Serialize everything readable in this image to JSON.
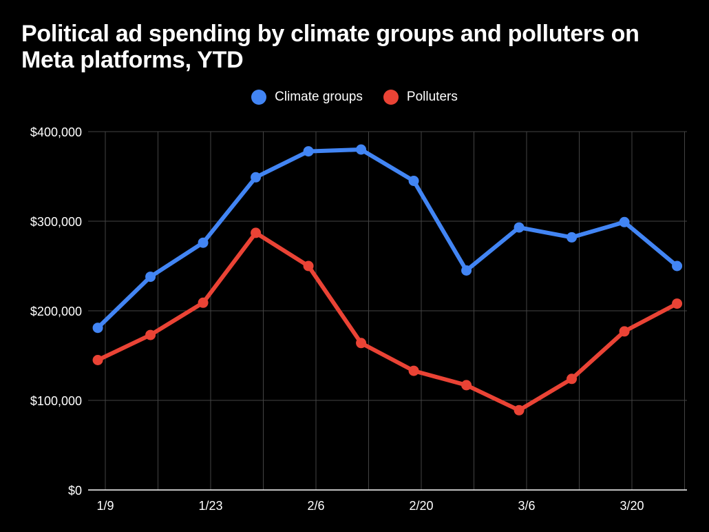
{
  "chart_data": {
    "type": "line",
    "title": "Political ad spending by climate groups and polluters on Meta platforms, YTD",
    "xlabel": "",
    "ylabel": "",
    "x_tick_labels": [
      "1/9",
      "1/23",
      "2/6",
      "2/20",
      "3/6",
      "3/20"
    ],
    "y_tick_labels": [
      "$0",
      "$100,000",
      "$200,000",
      "$300,000",
      "$400,000"
    ],
    "y_ticks": [
      0,
      100000,
      200000,
      300000,
      400000
    ],
    "ylim": [
      0,
      400000
    ],
    "x_dates": [
      "1/8",
      "1/15",
      "1/22",
      "1/29",
      "2/5",
      "2/12",
      "2/19",
      "2/26",
      "3/5",
      "3/12",
      "3/19",
      "3/26"
    ],
    "grid": true,
    "legend_position": "top",
    "series": [
      {
        "name": "Climate groups",
        "color": "#4285F4",
        "values": [
          181000,
          238000,
          276000,
          349000,
          378000,
          380000,
          345000,
          245000,
          293000,
          282000,
          299000,
          250000
        ]
      },
      {
        "name": "Polluters",
        "color": "#EA4335",
        "values": [
          145000,
          173000,
          209000,
          287000,
          250000,
          164000,
          133000,
          117000,
          89000,
          124000,
          177000,
          208000
        ]
      }
    ]
  }
}
